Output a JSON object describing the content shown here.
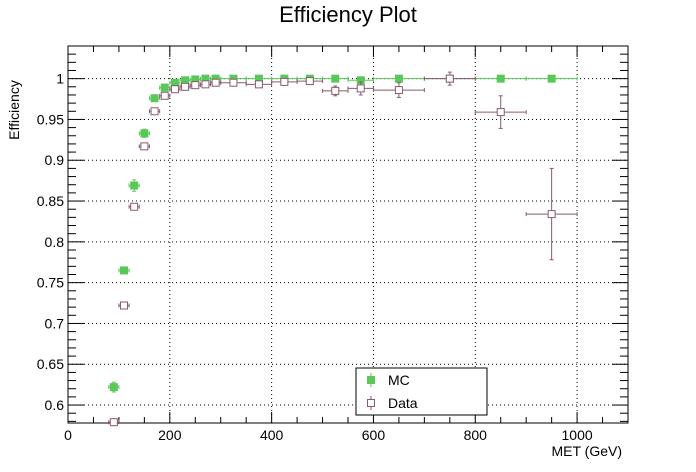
{
  "chart_data": {
    "type": "scatter",
    "title": "Efficiency Plot",
    "xlabel": "MET (GeV)",
    "ylabel": "Efficiency",
    "xlim": [
      0,
      1100
    ],
    "ylim": [
      0.578,
      1.04
    ],
    "grid": true,
    "legend_placement": "bottom-center",
    "x_ticks": [
      0,
      200,
      400,
      600,
      800,
      1000
    ],
    "x_tick_labels": [
      "0",
      "200",
      "400",
      "600",
      "800",
      "1000"
    ],
    "y_ticks": [
      0.6,
      0.65,
      0.7,
      0.75,
      0.8,
      0.85,
      0.9,
      0.95,
      1.0
    ],
    "y_tick_labels": [
      "0.6",
      "0.65",
      "0.7",
      "0.75",
      "0.8",
      "0.85",
      "0.9",
      "0.95",
      "1"
    ],
    "series": [
      {
        "name": "MC",
        "color": "#59c859",
        "marker": "filled-square",
        "points": [
          {
            "x": 90,
            "y": 0.622,
            "xerr": 10,
            "yerr": 0.006
          },
          {
            "x": 110,
            "y": 0.765,
            "xerr": 10,
            "yerr": 0.003
          },
          {
            "x": 130,
            "y": 0.869,
            "xerr": 10,
            "yerr": 0.007
          },
          {
            "x": 150,
            "y": 0.933,
            "xerr": 10,
            "yerr": 0.005
          },
          {
            "x": 170,
            "y": 0.976,
            "xerr": 10,
            "yerr": 0.003
          },
          {
            "x": 190,
            "y": 0.989,
            "xerr": 10,
            "yerr": 0.003
          },
          {
            "x": 210,
            "y": 0.995,
            "xerr": 10,
            "yerr": 0.003
          },
          {
            "x": 230,
            "y": 0.998,
            "xerr": 10,
            "yerr": 0.003
          },
          {
            "x": 250,
            "y": 0.999,
            "xerr": 10,
            "yerr": 0.002
          },
          {
            "x": 270,
            "y": 1.0,
            "xerr": 10,
            "yerr": 0.002
          },
          {
            "x": 290,
            "y": 1.0,
            "xerr": 10,
            "yerr": 0.002
          },
          {
            "x": 325,
            "y": 1.0,
            "xerr": 25,
            "yerr": 0.002
          },
          {
            "x": 375,
            "y": 1.0,
            "xerr": 25,
            "yerr": 0.002
          },
          {
            "x": 425,
            "y": 1.0,
            "xerr": 25,
            "yerr": 0.002
          },
          {
            "x": 475,
            "y": 1.0,
            "xerr": 25,
            "yerr": 0.002
          },
          {
            "x": 525,
            "y": 1.0,
            "xerr": 25,
            "yerr": 0.002
          },
          {
            "x": 575,
            "y": 0.998,
            "xerr": 25,
            "yerr": 0.003
          },
          {
            "x": 650,
            "y": 1.0,
            "xerr": 50,
            "yerr": 0.002
          },
          {
            "x": 750,
            "y": 1.0,
            "xerr": 50,
            "yerr": 0.003
          },
          {
            "x": 850,
            "y": 1.0,
            "xerr": 50,
            "yerr": 0.002
          },
          {
            "x": 950,
            "y": 1.0,
            "xerr": 50,
            "yerr": 0.002
          }
        ]
      },
      {
        "name": "Data",
        "color": "#8a5a6e",
        "marker": "open-square",
        "points": [
          {
            "x": 90,
            "y": 0.579,
            "xerr": 10,
            "yerr": 0.002
          },
          {
            "x": 110,
            "y": 0.722,
            "xerr": 10,
            "yerr": 0.003
          },
          {
            "x": 130,
            "y": 0.843,
            "xerr": 10,
            "yerr": 0.003
          },
          {
            "x": 150,
            "y": 0.917,
            "xerr": 10,
            "yerr": 0.003
          },
          {
            "x": 170,
            "y": 0.96,
            "xerr": 10,
            "yerr": 0.003
          },
          {
            "x": 190,
            "y": 0.979,
            "xerr": 10,
            "yerr": 0.003
          },
          {
            "x": 210,
            "y": 0.987,
            "xerr": 10,
            "yerr": 0.002
          },
          {
            "x": 230,
            "y": 0.99,
            "xerr": 10,
            "yerr": 0.002
          },
          {
            "x": 250,
            "y": 0.992,
            "xerr": 10,
            "yerr": 0.002
          },
          {
            "x": 270,
            "y": 0.993,
            "xerr": 10,
            "yerr": 0.002
          },
          {
            "x": 290,
            "y": 0.995,
            "xerr": 10,
            "yerr": 0.002
          },
          {
            "x": 325,
            "y": 0.995,
            "xerr": 25,
            "yerr": 0.002
          },
          {
            "x": 375,
            "y": 0.993,
            "xerr": 25,
            "yerr": 0.003
          },
          {
            "x": 425,
            "y": 0.996,
            "xerr": 25,
            "yerr": 0.003
          },
          {
            "x": 475,
            "y": 0.997,
            "xerr": 25,
            "yerr": 0.004
          },
          {
            "x": 525,
            "y": 0.985,
            "xerr": 25,
            "yerr": 0.006
          },
          {
            "x": 575,
            "y": 0.988,
            "xerr": 25,
            "yerr": 0.008
          },
          {
            "x": 650,
            "y": 0.986,
            "xerr": 50,
            "yerr": 0.009
          },
          {
            "x": 750,
            "y": 1.0,
            "xerr": 50,
            "yerr": 0.008
          },
          {
            "x": 850,
            "y": 0.959,
            "xerr": 50,
            "yerr": 0.02
          },
          {
            "x": 950,
            "y": 0.834,
            "xerr": 50,
            "yerr": 0.056
          }
        ]
      }
    ]
  }
}
